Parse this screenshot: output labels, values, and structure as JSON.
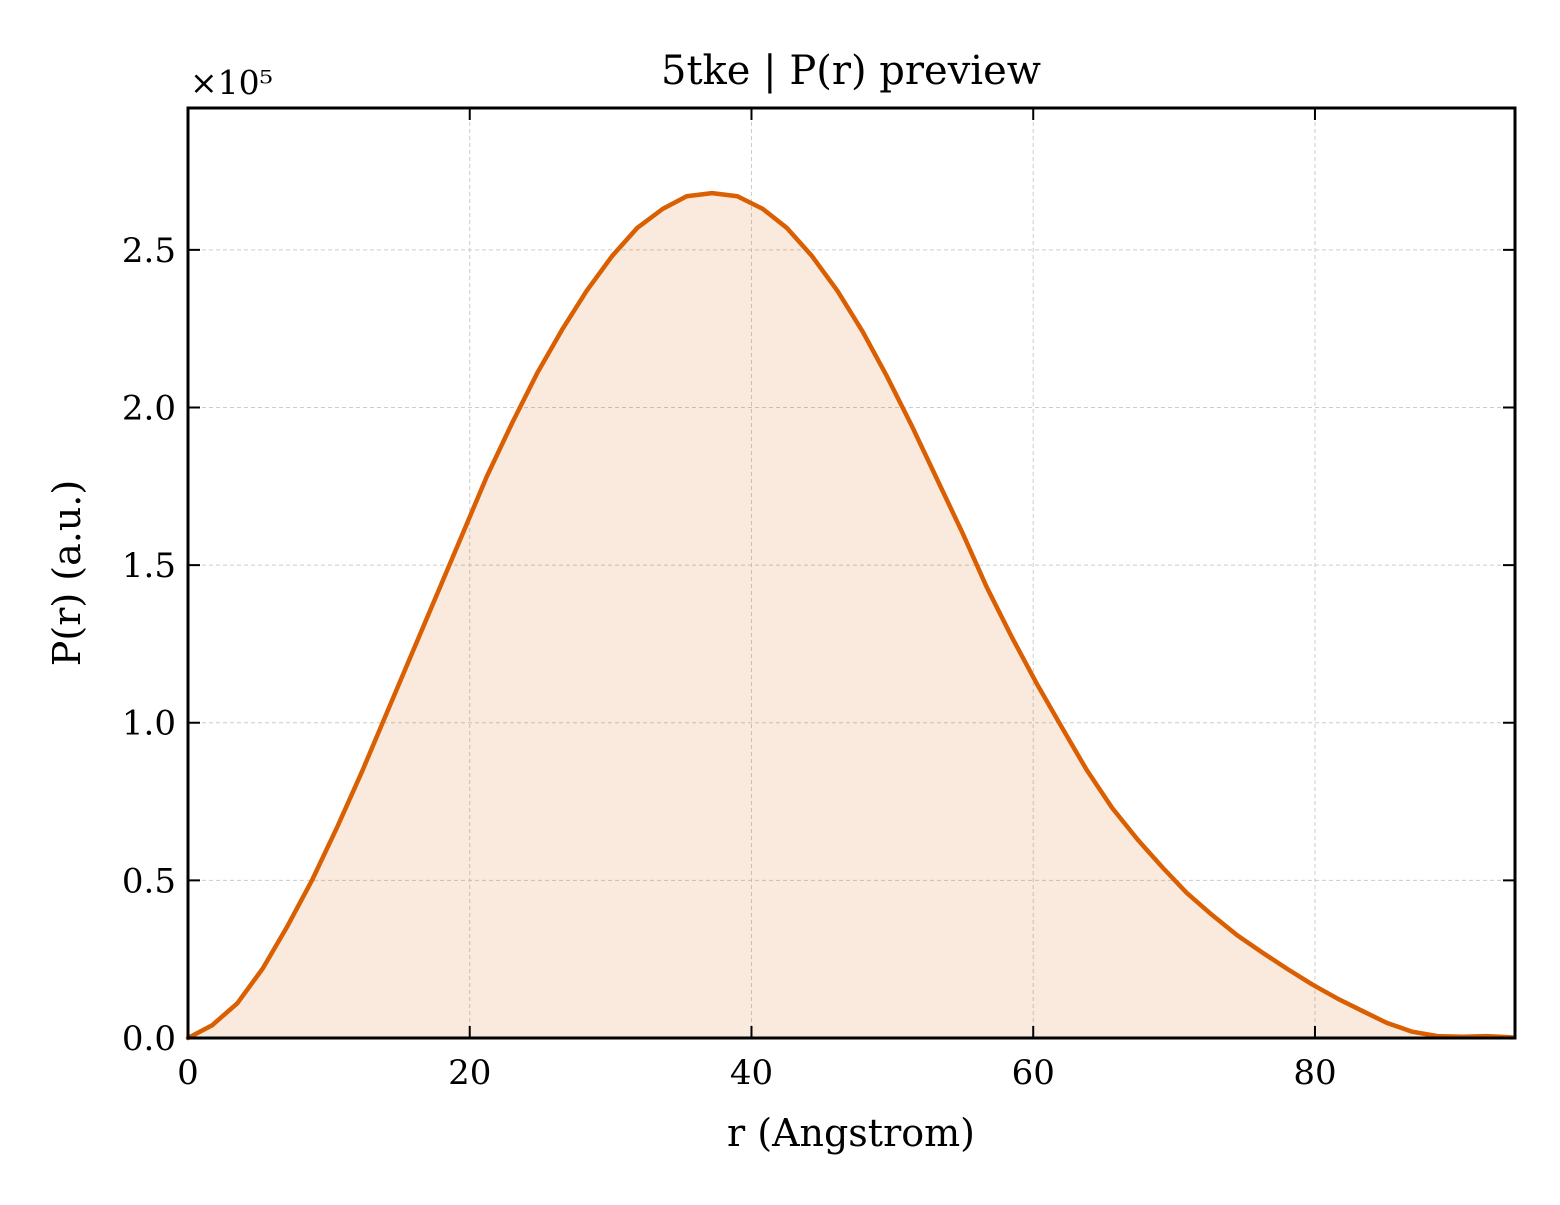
{
  "chart_data": {
    "type": "area",
    "title": "5tke | P(r) preview",
    "xlabel": "r (Angstrom)",
    "ylabel": "P(r) (a.u.)",
    "y_offset_text": "×10⁵",
    "y_scale_factor": 100000,
    "xlim": [
      0,
      94.2
    ],
    "ylim": [
      0,
      2.95
    ],
    "x_ticks": [
      0,
      20,
      40,
      60,
      80
    ],
    "x_tick_labels": [
      "0",
      "20",
      "40",
      "60",
      "80"
    ],
    "y_ticks": [
      0,
      0.5,
      1.0,
      1.5,
      2.0,
      2.5
    ],
    "y_tick_labels": [
      "0.0",
      "0.5",
      "1.0",
      "1.5",
      "2.0",
      "2.5"
    ],
    "grid": true,
    "legend": null,
    "colors": {
      "line": "#d95f02",
      "fill": "#d95f02",
      "fill_opacity": 0.13,
      "grid": "#cccccc",
      "axes": "#000000"
    },
    "series": [
      {
        "x": [
          0,
          1.7,
          3.5,
          5.3,
          7.0,
          8.8,
          10.6,
          12.4,
          14.1,
          15.9,
          17.7,
          19.5,
          21.2,
          23.0,
          24.8,
          26.6,
          28.3,
          30.1,
          31.9,
          33.7,
          35.4,
          37.2,
          39.0,
          40.8,
          42.5,
          44.3,
          46.1,
          47.9,
          49.6,
          51.4,
          53.2,
          55.0,
          56.7,
          58.5,
          60.3,
          62.1,
          63.8,
          65.6,
          67.4,
          69.2,
          70.9,
          72.7,
          74.5,
          76.3,
          78.0,
          79.8,
          81.6,
          83.4,
          85.1,
          86.9,
          88.7,
          90.5,
          92.2,
          94.0
        ],
        "values": [
          0.0,
          0.04,
          0.11,
          0.22,
          0.35,
          0.5,
          0.67,
          0.85,
          1.03,
          1.22,
          1.41,
          1.6,
          1.78,
          1.95,
          2.11,
          2.25,
          2.37,
          2.48,
          2.57,
          2.63,
          2.67,
          2.68,
          2.67,
          2.63,
          2.57,
          2.48,
          2.37,
          2.24,
          2.1,
          1.94,
          1.77,
          1.6,
          1.43,
          1.27,
          1.12,
          0.98,
          0.85,
          0.73,
          0.63,
          0.54,
          0.46,
          0.39,
          0.325,
          0.27,
          0.22,
          0.17,
          0.125,
          0.085,
          0.048,
          0.02,
          0.006,
          0.004,
          0.006,
          0.002
        ]
      }
    ]
  }
}
